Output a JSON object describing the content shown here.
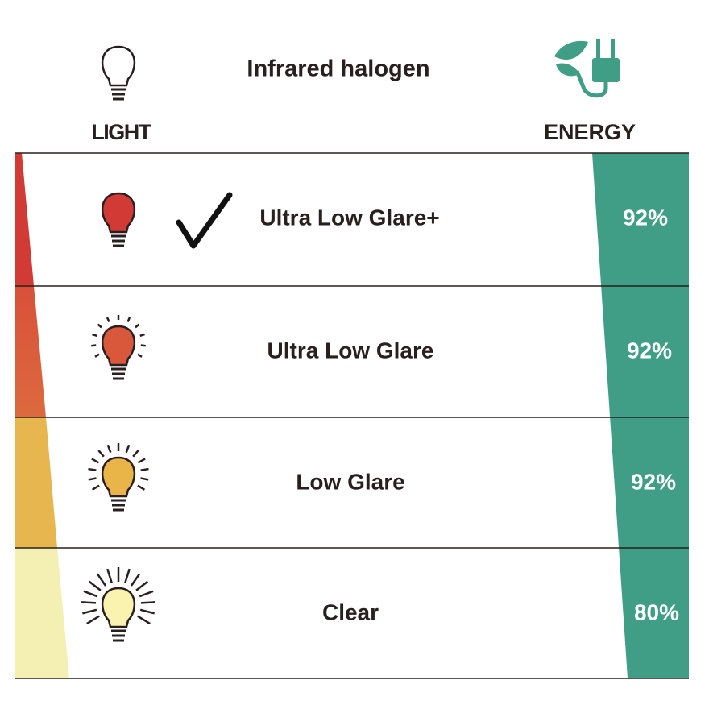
{
  "header": {
    "title": "Infrared halogen",
    "left_label": "LIGHT",
    "right_label": "ENERGY"
  },
  "rows": [
    {
      "label": "Ultra Low Glare+",
      "energy": "92%"
    },
    {
      "label": "Ultra Low Glare",
      "energy": "92%"
    },
    {
      "label": "Low Glare",
      "energy": "92%"
    },
    {
      "label": "Clear",
      "energy": "80%"
    }
  ]
}
